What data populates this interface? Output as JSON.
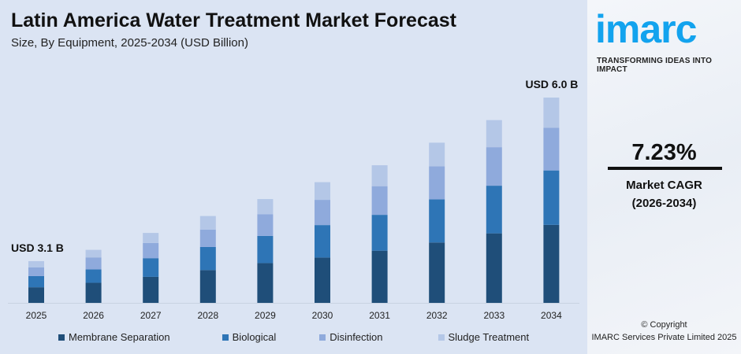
{
  "title": "Latin America Water Treatment Market Forecast",
  "subtitle": "Size, By Equipment, 2025-2034 (USD Billion)",
  "chart_data": {
    "type": "bar",
    "stacked": true,
    "categories": [
      "2025",
      "2026",
      "2027",
      "2028",
      "2029",
      "2030",
      "2031",
      "2032",
      "2033",
      "2034"
    ],
    "series": [
      {
        "name": "Membrane Separation",
        "color": "#1f4e79",
        "values": [
          1.16,
          1.25,
          1.34,
          1.47,
          1.61,
          1.69,
          1.82,
          1.96,
          2.13,
          2.28
        ]
      },
      {
        "name": "Biological",
        "color": "#2e75b6",
        "values": [
          0.83,
          0.83,
          0.96,
          1.04,
          1.1,
          1.21,
          1.25,
          1.4,
          1.46,
          1.59
        ]
      },
      {
        "name": "Disinfection",
        "color": "#8faadc",
        "values": [
          0.64,
          0.75,
          0.78,
          0.78,
          0.88,
          0.94,
          1.0,
          1.07,
          1.18,
          1.25
        ]
      },
      {
        "name": "Sludge Treatment",
        "color": "#b4c7e7",
        "values": [
          0.47,
          0.47,
          0.52,
          0.61,
          0.61,
          0.66,
          0.73,
          0.77,
          0.83,
          0.88
        ]
      }
    ],
    "annotations": [
      {
        "category": "2025",
        "text": "USD 3.1 B"
      },
      {
        "category": "2034",
        "text": "USD 6.0 B"
      }
    ],
    "legend_position": "bottom",
    "grid": false,
    "y_axis_visible": false
  },
  "sidebar": {
    "logo": "imarc",
    "tagline": "TRANSFORMING IDEAS INTO IMPACT",
    "cagr_value": "7.23%",
    "cagr_label": "Market CAGR",
    "cagr_period": "(2026-2034)",
    "copyright": "© Copyright",
    "company": "IMARC Services Private Limited 2025"
  }
}
